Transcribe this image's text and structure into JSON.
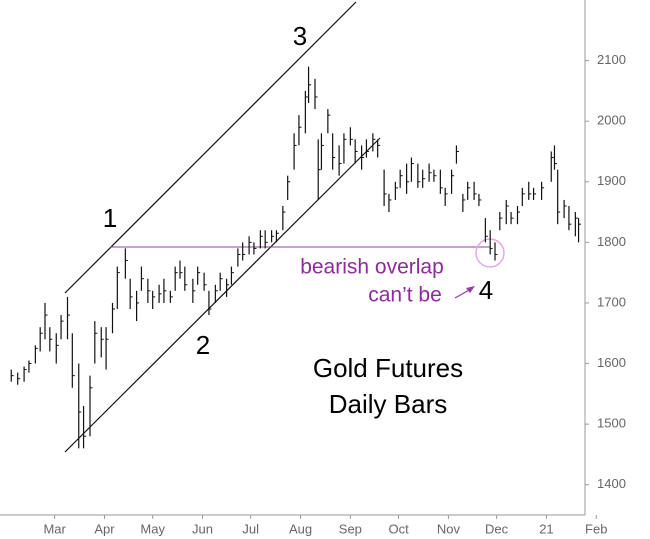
{
  "chart_data": {
    "type": "ohlc",
    "title": "Gold Futures",
    "subtitle": "Daily Bars",
    "annotations": {
      "wave1": "1",
      "wave2": "2",
      "wave3": "3",
      "wave4": "4",
      "overlap": "bearish overlap",
      "cant": "can’t be"
    },
    "color": "#111111",
    "annotation_color": "#8e2a9e",
    "xlim": [
      "2020-01-27",
      "2021-01-25"
    ],
    "ylim": [
      1350,
      2200
    ],
    "yticks": [
      1400,
      1500,
      1600,
      1700,
      1800,
      1900,
      2000,
      2100
    ],
    "xticks": [
      {
        "value": "2020-03-01",
        "label": "Mar"
      },
      {
        "value": "2020-04-01",
        "label": "Apr"
      },
      {
        "value": "2020-05-01",
        "label": "May"
      },
      {
        "value": "2020-06-01",
        "label": "Jun"
      },
      {
        "value": "2020-07-01",
        "label": "Jul"
      },
      {
        "value": "2020-08-01",
        "label": "Aug"
      },
      {
        "value": "2020-09-01",
        "label": "Sep"
      },
      {
        "value": "2020-10-01",
        "label": "Oct"
      },
      {
        "value": "2020-11-01",
        "label": "Nov"
      },
      {
        "value": "2020-12-01",
        "label": "Dec"
      },
      {
        "value": "2021-01-01",
        "label": "21"
      },
      {
        "value": "2021-02-01",
        "label": "Feb"
      }
    ],
    "x": [
      "2020-02-03",
      "2020-02-07",
      "2020-02-11",
      "2020-02-14",
      "2020-02-18",
      "2020-02-21",
      "2020-02-24",
      "2020-02-27",
      "2020-03-02",
      "2020-03-05",
      "2020-03-09",
      "2020-03-12",
      "2020-03-16",
      "2020-03-19",
      "2020-03-23",
      "2020-03-26",
      "2020-03-30",
      "2020-04-02",
      "2020-04-06",
      "2020-04-09",
      "2020-04-14",
      "2020-04-17",
      "2020-04-21",
      "2020-04-24",
      "2020-04-28",
      "2020-05-01",
      "2020-05-05",
      "2020-05-08",
      "2020-05-12",
      "2020-05-15",
      "2020-05-18",
      "2020-05-21",
      "2020-05-26",
      "2020-05-29",
      "2020-06-02",
      "2020-06-05",
      "2020-06-09",
      "2020-06-12",
      "2020-06-16",
      "2020-06-19",
      "2020-06-23",
      "2020-06-26",
      "2020-06-30",
      "2020-07-03",
      "2020-07-07",
      "2020-07-10",
      "2020-07-14",
      "2020-07-17",
      "2020-07-21",
      "2020-07-24",
      "2020-07-28",
      "2020-07-31",
      "2020-08-04",
      "2020-08-06",
      "2020-08-10",
      "2020-08-12",
      "2020-08-14",
      "2020-08-18",
      "2020-08-21",
      "2020-08-25",
      "2020-08-28",
      "2020-09-01",
      "2020-09-04",
      "2020-09-08",
      "2020-09-11",
      "2020-09-15",
      "2020-09-18",
      "2020-09-22",
      "2020-09-25",
      "2020-09-29",
      "2020-10-02",
      "2020-10-06",
      "2020-10-09",
      "2020-10-13",
      "2020-10-16",
      "2020-10-20",
      "2020-10-23",
      "2020-10-27",
      "2020-10-30",
      "2020-11-03",
      "2020-11-06",
      "2020-11-10",
      "2020-11-13",
      "2020-11-17",
      "2020-11-20",
      "2020-11-24",
      "2020-11-27",
      "2020-11-30",
      "2020-12-03",
      "2020-12-07",
      "2020-12-10",
      "2020-12-14",
      "2020-12-17",
      "2020-12-21",
      "2020-12-24",
      "2020-12-29",
      "2021-01-04",
      "2021-01-06",
      "2021-01-08",
      "2021-01-12",
      "2021-01-15",
      "2021-01-19",
      "2021-01-21"
    ],
    "high": [
      1590,
      1585,
      1595,
      1605,
      1630,
      1660,
      1700,
      1660,
      1650,
      1680,
      1710,
      1650,
      1600,
      1530,
      1580,
      1670,
      1660,
      1660,
      1700,
      1760,
      1790,
      1740,
      1720,
      1760,
      1740,
      1720,
      1730,
      1740,
      1720,
      1760,
      1770,
      1760,
      1740,
      1760,
      1750,
      1720,
      1730,
      1750,
      1740,
      1760,
      1790,
      1800,
      1810,
      1800,
      1820,
      1820,
      1820,
      1820,
      1860,
      1910,
      1980,
      2010,
      2050,
      2090,
      2070,
      1970,
      1980,
      2020,
      1980,
      1960,
      1980,
      1990,
      1970,
      1960,
      1970,
      1980,
      1970,
      1920,
      1880,
      1900,
      1920,
      1930,
      1940,
      1930,
      1920,
      1930,
      1920,
      1920,
      1890,
      1920,
      1960,
      1880,
      1900,
      1900,
      1880,
      1840,
      1820,
      1800,
      1850,
      1870,
      1850,
      1860,
      1890,
      1900,
      1890,
      1900,
      1950,
      1960,
      1920,
      1870,
      1860,
      1850,
      1840
    ],
    "low": [
      1570,
      1565,
      1570,
      1585,
      1600,
      1620,
      1640,
      1620,
      1600,
      1640,
      1640,
      1560,
      1460,
      1460,
      1480,
      1600,
      1610,
      1590,
      1650,
      1690,
      1740,
      1690,
      1670,
      1720,
      1700,
      1690,
      1700,
      1700,
      1700,
      1720,
      1740,
      1720,
      1700,
      1730,
      1720,
      1680,
      1700,
      1720,
      1710,
      1730,
      1760,
      1770,
      1780,
      1780,
      1790,
      1790,
      1800,
      1800,
      1820,
      1870,
      1920,
      1960,
      1980,
      2030,
      2020,
      1870,
      1920,
      1980,
      1920,
      1910,
      1930,
      1960,
      1930,
      1920,
      1940,
      1950,
      1940,
      1860,
      1850,
      1870,
      1890,
      1880,
      1900,
      1890,
      1890,
      1900,
      1900,
      1880,
      1860,
      1880,
      1930,
      1850,
      1870,
      1870,
      1860,
      1800,
      1780,
      1770,
      1820,
      1830,
      1830,
      1830,
      1860,
      1870,
      1870,
      1870,
      1900,
      1920,
      1830,
      1840,
      1820,
      1810,
      1800
    ],
    "close": [
      1580,
      1575,
      1590,
      1600,
      1625,
      1650,
      1680,
      1640,
      1630,
      1670,
      1680,
      1580,
      1520,
      1480,
      1560,
      1650,
      1640,
      1640,
      1690,
      1750,
      1770,
      1710,
      1700,
      1740,
      1720,
      1710,
      1715,
      1720,
      1710,
      1750,
      1750,
      1730,
      1720,
      1750,
      1730,
      1690,
      1720,
      1740,
      1730,
      1750,
      1780,
      1780,
      1800,
      1790,
      1810,
      1800,
      1810,
      1815,
      1850,
      1900,
      1960,
      1990,
      2040,
      2060,
      2040,
      1920,
      1960,
      2010,
      1940,
      1930,
      1970,
      1970,
      1950,
      1940,
      1950,
      1970,
      1960,
      1880,
      1870,
      1890,
      1910,
      1900,
      1930,
      1900,
      1905,
      1915,
      1910,
      1890,
      1880,
      1910,
      1950,
      1870,
      1890,
      1880,
      1870,
      1810,
      1790,
      1780,
      1840,
      1860,
      1840,
      1850,
      1880,
      1880,
      1880,
      1890,
      1940,
      1930,
      1850,
      1860,
      1830,
      1840,
      1830
    ]
  }
}
